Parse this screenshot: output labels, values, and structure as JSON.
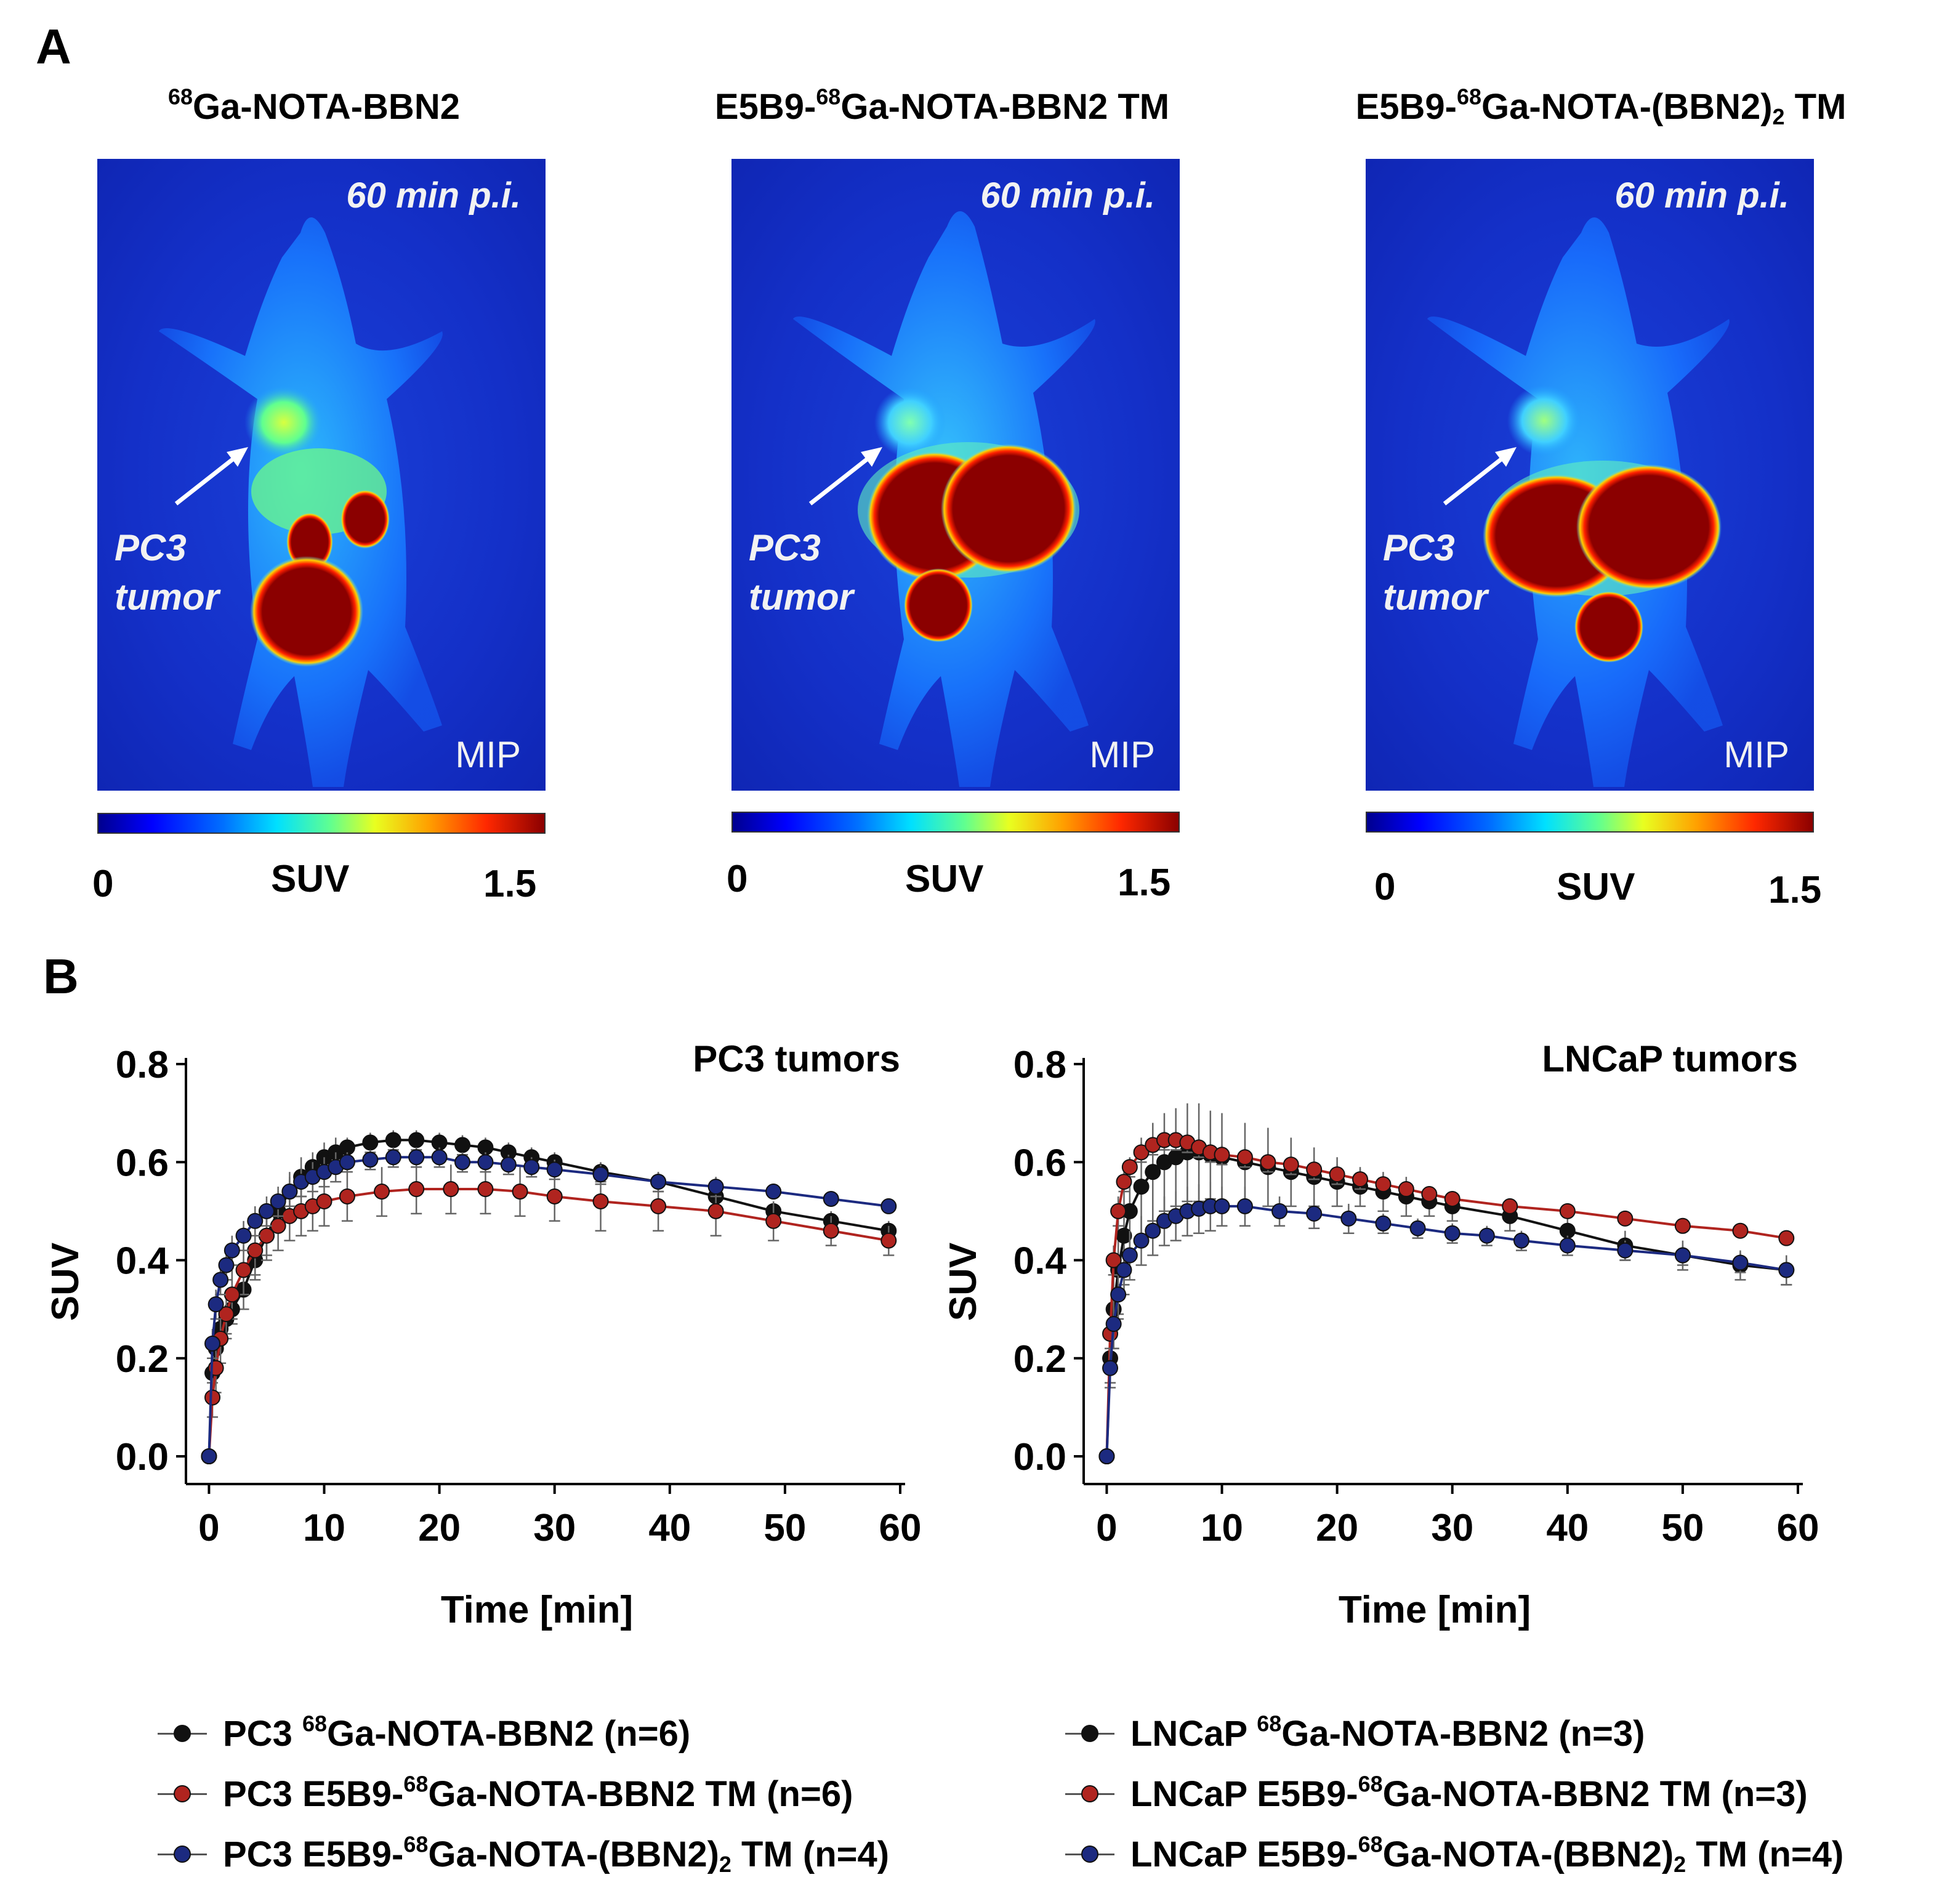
{
  "panel_a": {
    "letter": "A",
    "images": [
      {
        "title_sup": "68",
        "title_pre": "",
        "title_main": "Ga-NOTA-BBN2",
        "title_sub": "",
        "title_post": "",
        "time_label": "60 min p.i.",
        "mip_label": "MIP",
        "tumor_label_line1": "PC3",
        "tumor_label_line2": "tumor",
        "scale_min": "0",
        "scale_label": "SUV",
        "scale_max": "1.5"
      },
      {
        "title_sup": "68",
        "title_pre": "E5B9-",
        "title_main": "Ga-NOTA-BBN2 TM",
        "title_sub": "",
        "title_post": "",
        "time_label": "60 min p.i.",
        "mip_label": "MIP",
        "tumor_label_line1": "PC3",
        "tumor_label_line2": "tumor",
        "scale_min": "0",
        "scale_label": "SUV",
        "scale_max": "1.5"
      },
      {
        "title_sup": "68",
        "title_pre": "E5B9-",
        "title_main": "Ga-NOTA-(BBN2)",
        "title_sub": "2",
        "title_post": " TM",
        "time_label": "60 min p.i.",
        "mip_label": "MIP",
        "tumor_label_line1": "PC3",
        "tumor_label_line2": "tumor",
        "scale_min": "0",
        "scale_label": "SUV",
        "scale_max": "1.5"
      }
    ]
  },
  "panel_b": {
    "letter": "B"
  },
  "colors": {
    "black_series": "#111111",
    "red_series": "#b0241f",
    "blue_series": "#1c2a80"
  },
  "chart_data": [
    {
      "type": "line",
      "title": "PC3 tumors",
      "xlabel": "Time [min]",
      "ylabel": "SUV",
      "xlim": [
        -2,
        60
      ],
      "ylim": [
        0,
        0.8
      ],
      "xticks": [
        "0",
        "10",
        "20",
        "30",
        "40",
        "50",
        "60"
      ],
      "yticks": [
        "0.0",
        "0.2",
        "0.4",
        "0.6",
        "0.8"
      ],
      "series": [
        {
          "name": "PC3 68Ga-NOTA-BBN2 (n=6)",
          "color": "#111111",
          "x": [
            0,
            0.3,
            0.6,
            1,
            1.5,
            2,
            3,
            4,
            5,
            6,
            7,
            8,
            9,
            10,
            11,
            12,
            14,
            16,
            18,
            20,
            22,
            24,
            26,
            28,
            30,
            34,
            39,
            44,
            49,
            54,
            59
          ],
          "y": [
            0.0,
            0.17,
            0.22,
            0.26,
            0.28,
            0.3,
            0.34,
            0.4,
            0.45,
            0.5,
            0.54,
            0.57,
            0.59,
            0.61,
            0.62,
            0.63,
            0.64,
            0.645,
            0.645,
            0.64,
            0.635,
            0.63,
            0.62,
            0.61,
            0.6,
            0.58,
            0.56,
            0.53,
            0.5,
            0.48,
            0.46
          ],
          "err": [
            0,
            0.02,
            0.03,
            0.03,
            0.03,
            0.03,
            0.04,
            0.04,
            0.04,
            0.04,
            0.04,
            0.04,
            0.03,
            0.03,
            0.03,
            0.02,
            0.02,
            0.02,
            0.02,
            0.02,
            0.02,
            0.02,
            0.02,
            0.02,
            0.02,
            0.02,
            0.02,
            0.02,
            0.02,
            0.02,
            0.02
          ]
        },
        {
          "name": "PC3 E5B9-68Ga-NOTA-BBN2 TM (n=6)",
          "color": "#b0241f",
          "x": [
            0,
            0.3,
            0.6,
            1,
            1.5,
            2,
            3,
            4,
            5,
            6,
            7,
            8,
            9,
            10,
            12,
            15,
            18,
            21,
            24,
            27,
            30,
            34,
            39,
            44,
            49,
            54,
            59
          ],
          "y": [
            0.0,
            0.12,
            0.18,
            0.24,
            0.29,
            0.33,
            0.38,
            0.42,
            0.45,
            0.47,
            0.49,
            0.5,
            0.51,
            0.52,
            0.53,
            0.54,
            0.545,
            0.545,
            0.545,
            0.54,
            0.53,
            0.52,
            0.51,
            0.5,
            0.48,
            0.46,
            0.44
          ],
          "err": [
            0,
            0.04,
            0.05,
            0.05,
            0.05,
            0.05,
            0.05,
            0.05,
            0.05,
            0.05,
            0.05,
            0.05,
            0.05,
            0.05,
            0.05,
            0.05,
            0.05,
            0.05,
            0.05,
            0.05,
            0.05,
            0.06,
            0.05,
            0.05,
            0.04,
            0.03,
            0.03
          ]
        },
        {
          "name": "PC3 E5B9-68Ga-NOTA-(BBN2)2 TM (n=4)",
          "color": "#1c2a80",
          "x": [
            0,
            0.3,
            0.6,
            1,
            1.5,
            2,
            3,
            4,
            5,
            6,
            7,
            8,
            9,
            10,
            11,
            12,
            14,
            16,
            18,
            20,
            22,
            24,
            26,
            28,
            30,
            34,
            39,
            44,
            49,
            54,
            59
          ],
          "y": [
            0.0,
            0.23,
            0.31,
            0.36,
            0.39,
            0.42,
            0.45,
            0.48,
            0.5,
            0.52,
            0.54,
            0.56,
            0.57,
            0.58,
            0.59,
            0.6,
            0.605,
            0.61,
            0.61,
            0.61,
            0.6,
            0.6,
            0.595,
            0.59,
            0.585,
            0.575,
            0.56,
            0.55,
            0.54,
            0.525,
            0.51
          ],
          "err": [
            0,
            0.03,
            0.03,
            0.03,
            0.03,
            0.03,
            0.03,
            0.03,
            0.03,
            0.03,
            0.03,
            0.03,
            0.03,
            0.03,
            0.03,
            0.02,
            0.02,
            0.02,
            0.02,
            0.02,
            0.02,
            0.02,
            0.02,
            0.02,
            0.02,
            0.02,
            0.02,
            0.02,
            0.01,
            0.01,
            0.01
          ]
        }
      ]
    },
    {
      "type": "line",
      "title": "LNCaP tumors",
      "xlabel": "Time [min]",
      "ylabel": "SUV",
      "xlim": [
        -2,
        60
      ],
      "ylim": [
        0,
        0.8
      ],
      "xticks": [
        "0",
        "10",
        "20",
        "30",
        "40",
        "50",
        "60"
      ],
      "yticks": [
        "0.0",
        "0.2",
        "0.4",
        "0.6",
        "0.8"
      ],
      "series": [
        {
          "name": "LNCaP 68Ga-NOTA-BBN2 (n=3)",
          "color": "#111111",
          "x": [
            0,
            0.3,
            0.6,
            1,
            1.5,
            2,
            3,
            4,
            5,
            6,
            7,
            8,
            9,
            10,
            12,
            14,
            16,
            18,
            20,
            22,
            24,
            26,
            28,
            30,
            35,
            40,
            45,
            50,
            55,
            59
          ],
          "y": [
            0.0,
            0.2,
            0.3,
            0.38,
            0.45,
            0.5,
            0.55,
            0.58,
            0.6,
            0.61,
            0.62,
            0.62,
            0.615,
            0.61,
            0.6,
            0.59,
            0.58,
            0.57,
            0.56,
            0.55,
            0.54,
            0.53,
            0.52,
            0.51,
            0.49,
            0.46,
            0.43,
            0.41,
            0.39,
            0.38
          ],
          "err": [
            0,
            0.05,
            0.08,
            0.09,
            0.1,
            0.1,
            0.1,
            0.1,
            0.1,
            0.1,
            0.1,
            0.1,
            0.09,
            0.09,
            0.08,
            0.08,
            0.07,
            0.06,
            0.05,
            0.04,
            0.04,
            0.04,
            0.03,
            0.03,
            0.03,
            0.03,
            0.03,
            0.03,
            0.03,
            0.03
          ]
        },
        {
          "name": "LNCaP E5B9-68Ga-NOTA-BBN2 TM (n=3)",
          "color": "#b0241f",
          "x": [
            0,
            0.3,
            0.6,
            1,
            1.5,
            2,
            3,
            4,
            5,
            6,
            7,
            8,
            9,
            10,
            12,
            14,
            16,
            18,
            20,
            22,
            24,
            26,
            28,
            30,
            35,
            40,
            45,
            50,
            55,
            59
          ],
          "y": [
            0.0,
            0.25,
            0.4,
            0.5,
            0.56,
            0.59,
            0.62,
            0.635,
            0.645,
            0.645,
            0.64,
            0.63,
            0.62,
            0.615,
            0.61,
            0.6,
            0.595,
            0.585,
            0.575,
            0.565,
            0.555,
            0.545,
            0.535,
            0.525,
            0.51,
            0.5,
            0.485,
            0.47,
            0.46,
            0.445
          ],
          "err": [
            0,
            0.03,
            0.03,
            0.03,
            0.02,
            0.02,
            0.02,
            0.02,
            0.02,
            0.02,
            0.02,
            0.02,
            0.02,
            0.02,
            0.02,
            0.02,
            0.02,
            0.02,
            0.02,
            0.02,
            0.01,
            0.01,
            0.01,
            0.01,
            0.01,
            0.01,
            0.01,
            0.01,
            0.01,
            0.01
          ]
        },
        {
          "name": "LNCaP E5B9-68Ga-NOTA-(BBN2)2 TM (n=4)",
          "color": "#1c2a80",
          "x": [
            0,
            0.3,
            0.6,
            1,
            1.5,
            2,
            3,
            4,
            5,
            6,
            7,
            8,
            9,
            10,
            12,
            15,
            18,
            21,
            24,
            27,
            30,
            33,
            36,
            40,
            45,
            50,
            55,
            59
          ],
          "y": [
            0.0,
            0.18,
            0.27,
            0.33,
            0.38,
            0.41,
            0.44,
            0.46,
            0.48,
            0.49,
            0.5,
            0.505,
            0.51,
            0.51,
            0.51,
            0.5,
            0.495,
            0.485,
            0.475,
            0.465,
            0.455,
            0.45,
            0.44,
            0.43,
            0.42,
            0.41,
            0.395,
            0.38
          ],
          "err": [
            0,
            0.04,
            0.05,
            0.05,
            0.05,
            0.05,
            0.05,
            0.05,
            0.05,
            0.05,
            0.05,
            0.05,
            0.05,
            0.04,
            0.04,
            0.03,
            0.03,
            0.03,
            0.02,
            0.02,
            0.02,
            0.02,
            0.02,
            0.02,
            0.02,
            0.02,
            0.02,
            0.03
          ]
        }
      ]
    }
  ],
  "legend_left": [
    {
      "pre": "PC3 ",
      "sup": "68",
      "main": "Ga-NOTA-BBN2 (n=6)",
      "sub": "",
      "post": "",
      "color": "#111111"
    },
    {
      "pre": "PC3 E5B9-",
      "sup": "68",
      "main": "Ga-NOTA-BBN2 TM (n=6)",
      "sub": "",
      "post": "",
      "color": "#b0241f"
    },
    {
      "pre": "PC3 E5B9-",
      "sup": "68",
      "main": "Ga-NOTA-(BBN2)",
      "sub": "2",
      "post": " TM (n=4)",
      "color": "#1c2a80"
    }
  ],
  "legend_right": [
    {
      "pre": "LNCaP ",
      "sup": "68",
      "main": "Ga-NOTA-BBN2 (n=3)",
      "sub": "",
      "post": "",
      "color": "#111111"
    },
    {
      "pre": "LNCaP E5B9-",
      "sup": "68",
      "main": "Ga-NOTA-BBN2 TM (n=3)",
      "sub": "",
      "post": "",
      "color": "#b0241f"
    },
    {
      "pre": "LNCaP E5B9-",
      "sup": "68",
      "main": "Ga-NOTA-(BBN2)",
      "sub": "2",
      "post": " TM (n=4)",
      "color": "#1c2a80"
    }
  ]
}
